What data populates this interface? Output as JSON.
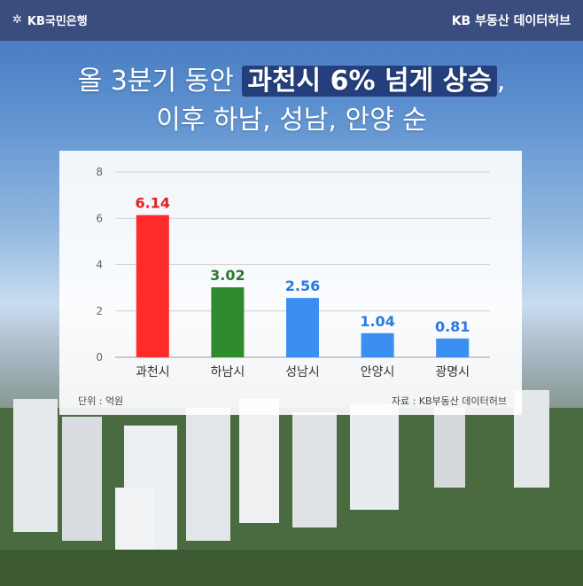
{
  "header": {
    "brand_left": "KB국민은행",
    "brand_right": "KB 부동산 데이터허브"
  },
  "headline": {
    "line1_prefix": "올 3분기 동안 ",
    "line1_highlight": "과천시 6% 넘게 상승",
    "line1_suffix": ",",
    "line2": "이후 하남, 성남, 안양 순"
  },
  "notes": {
    "unit": "단위 : 억원",
    "source": "자료 : KB부동산 데이터허브"
  },
  "chart_data": {
    "type": "bar",
    "categories": [
      "과천시",
      "하남시",
      "성남시",
      "안양시",
      "광명시"
    ],
    "values": [
      6.14,
      3.02,
      2.56,
      1.04,
      0.81
    ],
    "value_labels": [
      "6.14",
      "3.02",
      "2.56",
      "1.04",
      "0.81"
    ],
    "bar_colors": [
      "#ff2a2a",
      "#2e8b2e",
      "#3a8ff0",
      "#3a8ff0",
      "#3a8ff0"
    ],
    "label_colors": [
      "#e02020",
      "#2b7a2b",
      "#2a7ae0",
      "#2a7ae0",
      "#2a7ae0"
    ],
    "yticks": [
      "0",
      "2",
      "4",
      "6",
      "8"
    ],
    "ylim": [
      0,
      8
    ],
    "grid": true,
    "title": "",
    "xlabel": "",
    "ylabel": ""
  }
}
